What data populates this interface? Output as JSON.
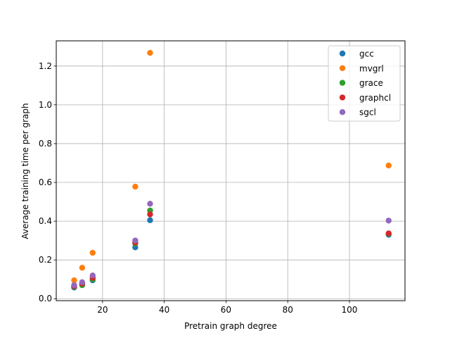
{
  "chart_data": {
    "type": "scatter",
    "xlabel": "Pretrain graph degree",
    "ylabel": "Average training time per graph",
    "xlim": [
      5,
      118
    ],
    "ylim": [
      -0.01,
      1.33
    ],
    "xticks": [
      20,
      40,
      60,
      80,
      100
    ],
    "yticks": [
      0.0,
      0.2,
      0.4,
      0.6,
      0.8,
      1.0,
      1.2
    ],
    "grid": true,
    "legend_position": "top-right",
    "series": [
      {
        "name": "gcc",
        "color": "#1f77b4",
        "points": [
          [
            10.8,
            0.058
          ],
          [
            13.4,
            0.075
          ],
          [
            16.8,
            0.095
          ],
          [
            30.6,
            0.265
          ],
          [
            35.4,
            0.405
          ],
          [
            112.7,
            0.33
          ]
        ]
      },
      {
        "name": "mvgrl",
        "color": "#ff7f0e",
        "points": [
          [
            10.8,
            0.095
          ],
          [
            13.4,
            0.16
          ],
          [
            16.8,
            0.237
          ],
          [
            30.6,
            0.578
          ],
          [
            35.4,
            1.268
          ],
          [
            112.7,
            0.687
          ]
        ]
      },
      {
        "name": "grace",
        "color": "#2ca02c",
        "points": [
          [
            10.8,
            0.062
          ],
          [
            13.4,
            0.07
          ],
          [
            16.8,
            0.1
          ],
          [
            30.6,
            0.285
          ],
          [
            35.4,
            0.455
          ],
          [
            112.7,
            0.335
          ]
        ]
      },
      {
        "name": "graphcl",
        "color": "#d62728",
        "points": [
          [
            10.8,
            0.065
          ],
          [
            13.4,
            0.078
          ],
          [
            16.8,
            0.108
          ],
          [
            30.6,
            0.29
          ],
          [
            35.4,
            0.435
          ],
          [
            112.7,
            0.337
          ]
        ]
      },
      {
        "name": "sgcl",
        "color": "#9467bd",
        "points": [
          [
            10.8,
            0.07
          ],
          [
            13.4,
            0.085
          ],
          [
            16.8,
            0.12
          ],
          [
            30.6,
            0.3
          ],
          [
            35.4,
            0.49
          ],
          [
            112.7,
            0.403
          ]
        ]
      }
    ]
  }
}
